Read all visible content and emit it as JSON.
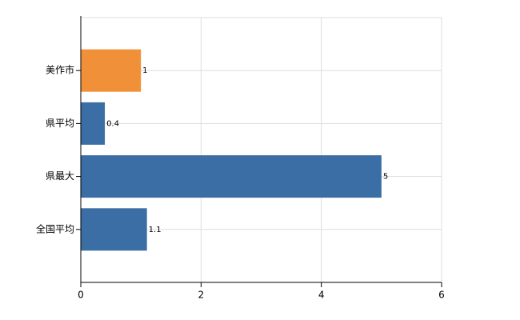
{
  "chart_data": {
    "type": "bar",
    "orientation": "horizontal",
    "categories": [
      "美作市",
      "県平均",
      "県最大",
      "全国平均"
    ],
    "values": [
      1,
      0.4,
      5,
      1.1
    ],
    "colors": [
      "#f0913a",
      "#3a6ea5",
      "#3a6ea5",
      "#3a6ea5"
    ],
    "xlim": [
      0,
      6
    ],
    "xticks": [
      0,
      2,
      4,
      6
    ],
    "grid": true
  }
}
